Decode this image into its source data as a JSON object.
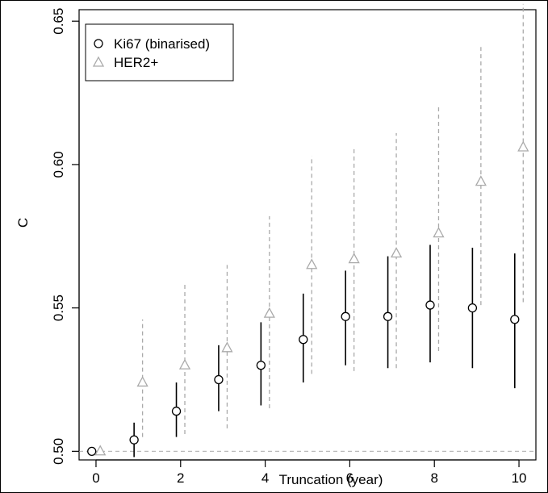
{
  "chart_data": {
    "type": "scatter",
    "title": "",
    "xlabel": "Truncation (year)",
    "ylabel": "C",
    "xlim": [
      -0.4,
      10.4
    ],
    "ylim": [
      0.497,
      0.654
    ],
    "xticks": [
      "0",
      "2",
      "4",
      "6",
      "8",
      "10"
    ],
    "yticks": [
      "0.50",
      "0.55",
      "0.60",
      "0.65"
    ],
    "legend_position": "top-left",
    "reference_line": {
      "y": 0.5,
      "color": "#bbbbbb"
    },
    "series": [
      {
        "name": "Ki67 (binarised)",
        "marker": "circle",
        "color": "#000000",
        "line_style": "solid",
        "points": [
          {
            "x": -0.1,
            "y": 0.5,
            "lo": 0.5,
            "hi": 0.5
          },
          {
            "x": 0.9,
            "y": 0.504,
            "lo": 0.498,
            "hi": 0.51
          },
          {
            "x": 1.9,
            "y": 0.514,
            "lo": 0.505,
            "hi": 0.524
          },
          {
            "x": 2.9,
            "y": 0.525,
            "lo": 0.514,
            "hi": 0.537
          },
          {
            "x": 3.9,
            "y": 0.53,
            "lo": 0.516,
            "hi": 0.545
          },
          {
            "x": 4.9,
            "y": 0.539,
            "lo": 0.524,
            "hi": 0.555
          },
          {
            "x": 5.9,
            "y": 0.547,
            "lo": 0.53,
            "hi": 0.563
          },
          {
            "x": 6.9,
            "y": 0.547,
            "lo": 0.529,
            "hi": 0.568
          },
          {
            "x": 7.9,
            "y": 0.551,
            "lo": 0.531,
            "hi": 0.572
          },
          {
            "x": 8.9,
            "y": 0.55,
            "lo": 0.529,
            "hi": 0.571
          },
          {
            "x": 9.9,
            "y": 0.546,
            "lo": 0.522,
            "hi": 0.569
          }
        ]
      },
      {
        "name": "HER2+",
        "marker": "triangle",
        "color": "#aaaaaa",
        "line_style": "dashed",
        "points": [
          {
            "x": 0.1,
            "y": 0.5,
            "lo": 0.5,
            "hi": 0.5
          },
          {
            "x": 1.1,
            "y": 0.524,
            "lo": 0.505,
            "hi": 0.546
          },
          {
            "x": 2.1,
            "y": 0.53,
            "lo": 0.506,
            "hi": 0.559
          },
          {
            "x": 3.1,
            "y": 0.536,
            "lo": 0.508,
            "hi": 0.565
          },
          {
            "x": 4.1,
            "y": 0.548,
            "lo": 0.515,
            "hi": 0.582
          },
          {
            "x": 5.1,
            "y": 0.565,
            "lo": 0.527,
            "hi": 0.603
          },
          {
            "x": 6.1,
            "y": 0.567,
            "lo": 0.528,
            "hi": 0.606
          },
          {
            "x": 7.1,
            "y": 0.569,
            "lo": 0.529,
            "hi": 0.611
          },
          {
            "x": 8.1,
            "y": 0.576,
            "lo": 0.535,
            "hi": 0.62
          },
          {
            "x": 9.1,
            "y": 0.594,
            "lo": 0.551,
            "hi": 0.641
          },
          {
            "x": 10.1,
            "y": 0.606,
            "lo": 0.552,
            "hi": 0.656
          }
        ]
      }
    ]
  }
}
